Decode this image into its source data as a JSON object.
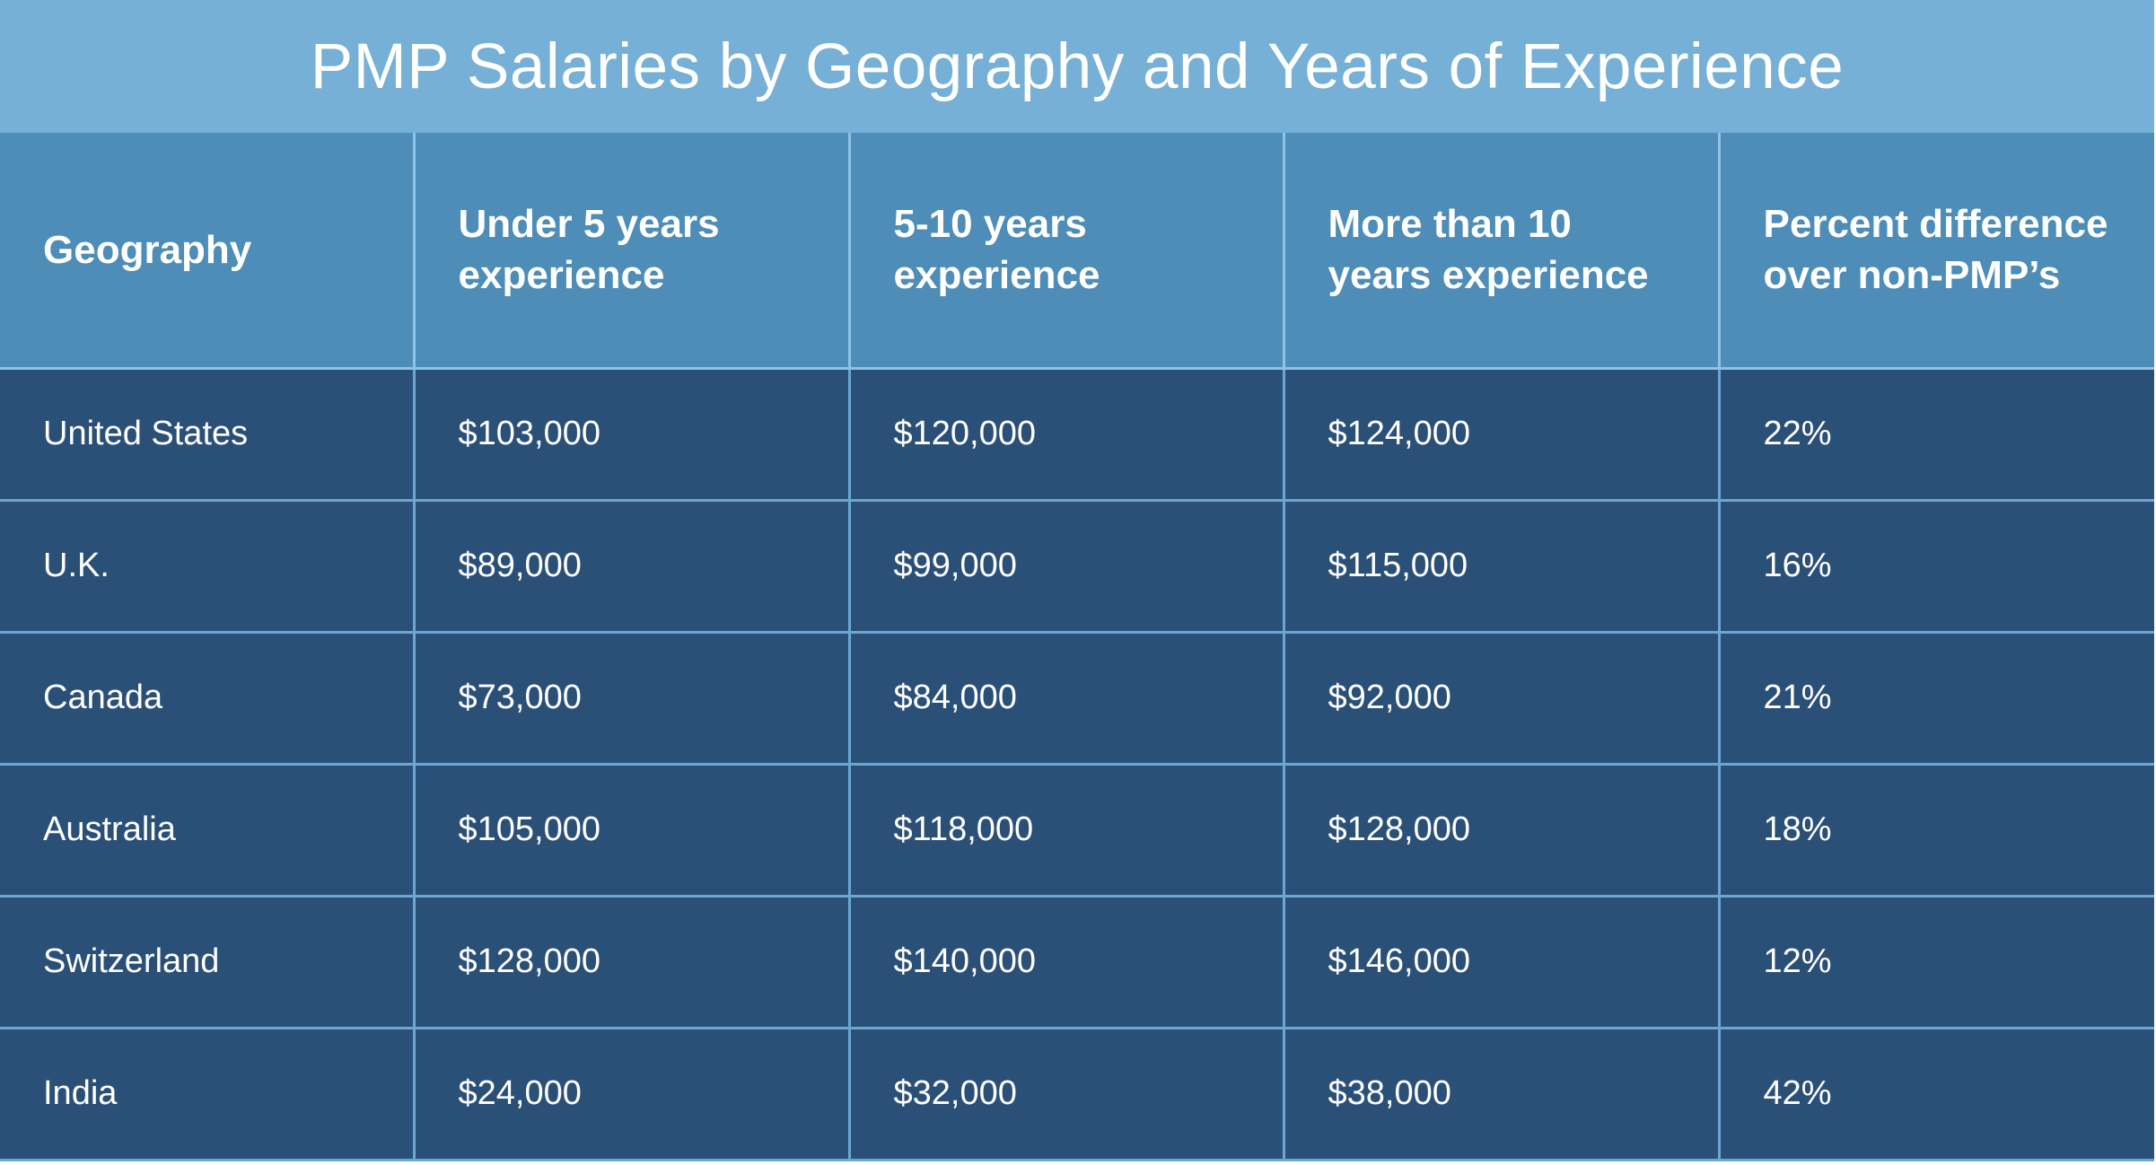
{
  "title": "PMP Salaries by Geography and Years of Experience",
  "table": {
    "headers": [
      "Geography",
      "Under 5 years experience",
      "5-10 years experience",
      "More than 10 years experience",
      "Percent difference over non-PMP’s"
    ],
    "rows": [
      [
        "United States",
        "$103,000",
        "$120,000",
        "$124,000",
        "22%"
      ],
      [
        "U.K.",
        "$89,000",
        "$99,000",
        "$115,000",
        "16%"
      ],
      [
        "Canada",
        "$73,000",
        "$84,000",
        "$92,000",
        "21%"
      ],
      [
        "Australia",
        "$105,000",
        "$118,000",
        "$128,000",
        "18%"
      ],
      [
        "Switzerland",
        "$128,000",
        "$140,000",
        "$146,000",
        "12%"
      ],
      [
        "India",
        "$24,000",
        "$32,000",
        "$38,000",
        "42%"
      ]
    ]
  },
  "colors": {
    "title_bar": "#76b0d6",
    "header_bg": "#4d8db8",
    "row_bg": "#2b5077",
    "grid_lines": "#6aa7d3",
    "text": "#ffffff"
  }
}
